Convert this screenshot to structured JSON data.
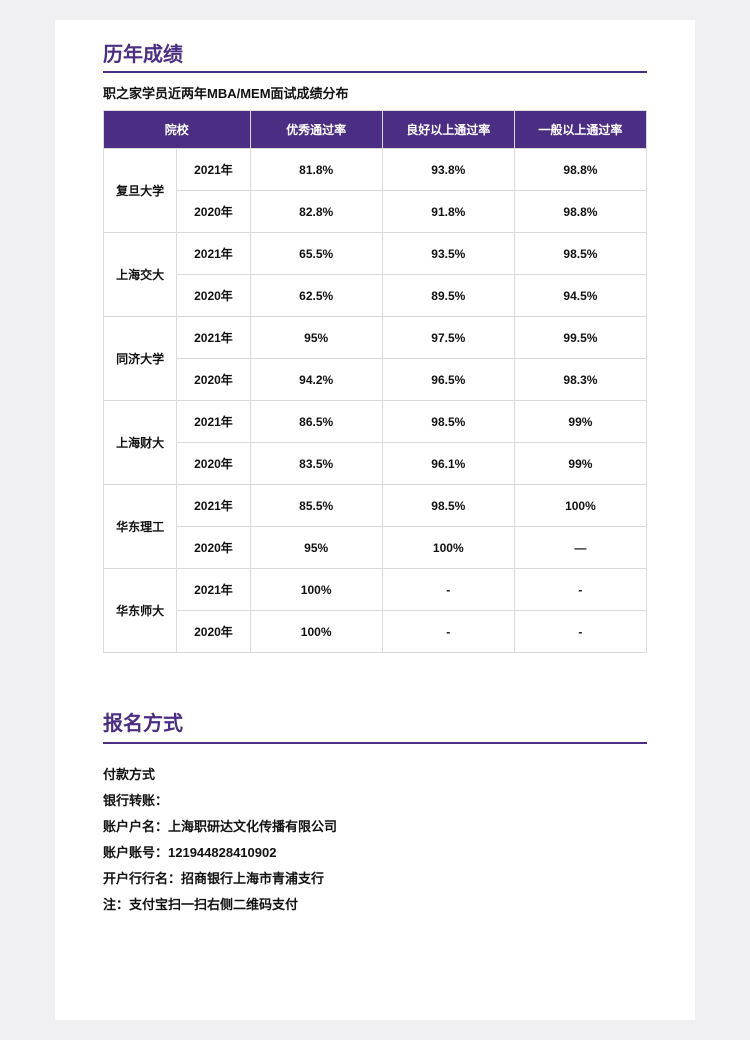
{
  "results": {
    "title": "历年成绩",
    "subtitle": "职之家学员近两年MBA/MEM面试成绩分布",
    "headers": {
      "school": "院校",
      "excellent": "优秀通过率",
      "good": "良好以上通过率",
      "general": "一般以上通过率"
    },
    "schools": [
      {
        "name": "复旦大学",
        "rows": [
          {
            "year": "2021年",
            "excellent": "81.8%",
            "good": "93.8%",
            "general": "98.8%"
          },
          {
            "year": "2020年",
            "excellent": "82.8%",
            "good": "91.8%",
            "general": "98.8%"
          }
        ]
      },
      {
        "name": "上海交大",
        "rows": [
          {
            "year": "2021年",
            "excellent": "65.5%",
            "good": "93.5%",
            "general": "98.5%"
          },
          {
            "year": "2020年",
            "excellent": "62.5%",
            "good": "89.5%",
            "general": "94.5%"
          }
        ]
      },
      {
        "name": "同济大学",
        "rows": [
          {
            "year": "2021年",
            "excellent": "95%",
            "good": "97.5%",
            "general": "99.5%"
          },
          {
            "year": "2020年",
            "excellent": "94.2%",
            "good": "96.5%",
            "general": "98.3%"
          }
        ]
      },
      {
        "name": "上海财大",
        "rows": [
          {
            "year": "2021年",
            "excellent": "86.5%",
            "good": "98.5%",
            "general": "99%"
          },
          {
            "year": "2020年",
            "excellent": "83.5%",
            "good": "96.1%",
            "general": "99%"
          }
        ]
      },
      {
        "name": "华东理工",
        "rows": [
          {
            "year": "2021年",
            "excellent": "85.5%",
            "good": "98.5%",
            "general": "100%"
          },
          {
            "year": "2020年",
            "excellent": "95%",
            "good": "100%",
            "general": "—"
          }
        ]
      },
      {
        "name": "华东师大",
        "rows": [
          {
            "year": "2021年",
            "excellent": "100%",
            "good": "-",
            "general": "-"
          },
          {
            "year": "2020年",
            "excellent": "100%",
            "good": "-",
            "general": "-"
          }
        ]
      }
    ]
  },
  "registration": {
    "title": "报名方式",
    "lines": [
      "付款方式",
      "银行转账：",
      "账户户名：上海职研达文化传播有限公司",
      "账户账号：121944828410902",
      "开户行行名：招商银行上海市青浦支行",
      "注：支付宝扫一扫右侧二维码支付"
    ]
  },
  "colors": {
    "accent": "#4b2e83",
    "text": "#111111",
    "border": "#d9d9e0",
    "page_bg": "#ffffff",
    "body_bg": "#f0f0f3"
  }
}
